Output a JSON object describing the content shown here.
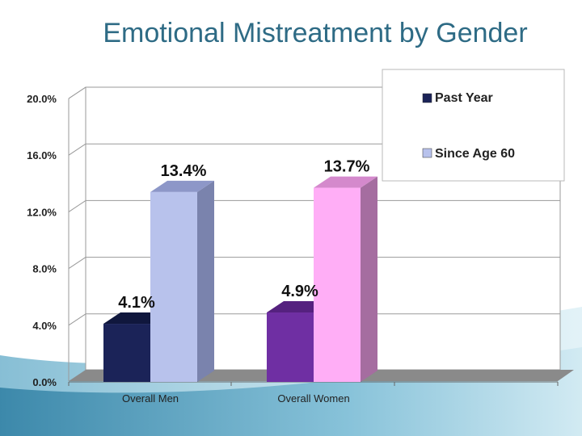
{
  "title": "Emotional Mistreatment by Gender",
  "colors": {
    "title": "#2e6b85",
    "past_year_front": "#1b2358",
    "past_year_top": "#10173d",
    "past_year_side": "#0e1433",
    "since60_front": "#b8c2ec",
    "since60_top": "#8d97c8",
    "since60_side": "#7a83ad",
    "women_past_front": "#6f2fa3",
    "women_past_top": "#55217f",
    "women_past_side": "#4a1c6e",
    "women_since60_front": "#ffaef6",
    "women_since60_top": "#d489cc",
    "women_since60_side": "#a56da0"
  },
  "chart_data": {
    "type": "bar",
    "title": "Emotional Mistreatment by Gender",
    "categories": [
      "Overall Men",
      "Overall Women"
    ],
    "series": [
      {
        "name": "Past Year",
        "values": [
          4.1,
          4.9
        ]
      },
      {
        "name": "Since Age 60",
        "values": [
          13.4,
          13.7
        ]
      }
    ],
    "data_labels": [
      [
        "4.1%",
        "4.9%"
      ],
      [
        "13.4%",
        "13.7%"
      ]
    ],
    "y_ticks": [
      "0.0%",
      "4.0%",
      "8.0%",
      "12.0%",
      "16.0%",
      "20.0%"
    ],
    "ylim": [
      0,
      20
    ],
    "xlabel": "",
    "ylabel": "",
    "grid": true,
    "legend": {
      "position": "top-right",
      "entries": [
        "Past Year",
        "Since Age 60"
      ]
    }
  }
}
